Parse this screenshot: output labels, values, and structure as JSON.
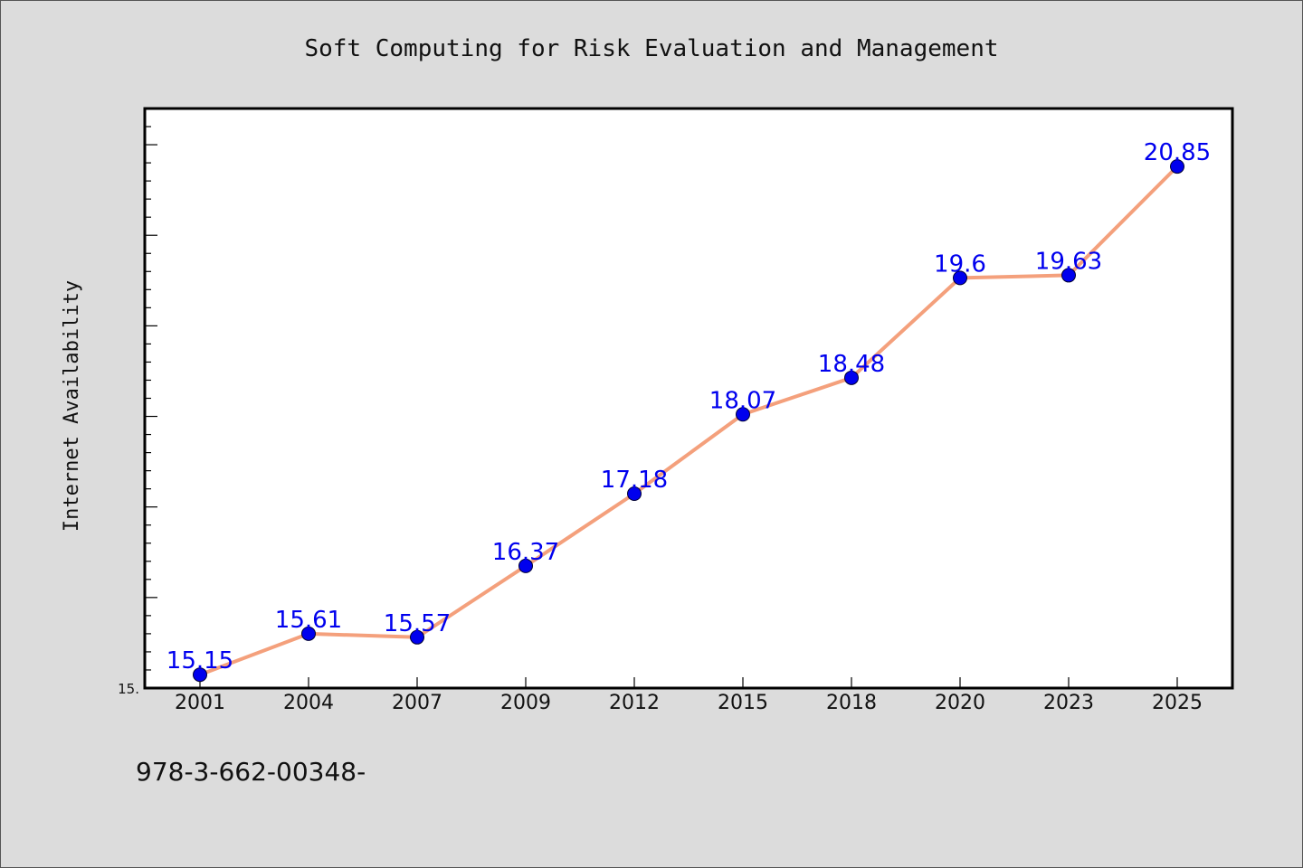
{
  "chart_data": {
    "type": "line",
    "title": "Soft Computing for Risk Evaluation and Management",
    "xlabel": "",
    "ylabel": "Internet Availability",
    "categories": [
      "2001",
      "2004",
      "2007",
      "2009",
      "2012",
      "2015",
      "2018",
      "2020",
      "2023",
      "2025"
    ],
    "series": [
      {
        "values": [
          15.15,
          15.61,
          15.57,
          16.37,
          17.18,
          18.07,
          18.48,
          19.6,
          19.63,
          20.85
        ],
        "labels": [
          "15.15",
          "15.61",
          "15.57",
          "16.37",
          "17.18",
          "18.07",
          "18.48",
          "19.6",
          "19.63",
          "20.85"
        ]
      }
    ],
    "ylim": [
      15.0,
      21.5
    ],
    "y_tick_labels": [
      "15."
    ],
    "grid": false,
    "colors": {
      "line": "#f4a07c",
      "marker": "#0000ee",
      "data_label": "#0000ee",
      "plot_bg": "#ffffff",
      "page_bg": "#dcdcdc"
    }
  },
  "footer": {
    "text": "978-3-662-00348-"
  }
}
